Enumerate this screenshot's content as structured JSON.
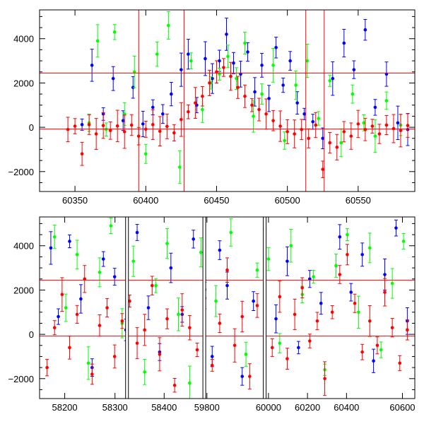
{
  "chart_data": [
    {
      "type": "scatter",
      "title": "",
      "xlabel": "",
      "ylabel": "",
      "xlim": [
        60325,
        60590
      ],
      "ylim": [
        -2900,
        5300
      ],
      "x_ticks": [
        60350,
        60400,
        60450,
        60500,
        60550
      ],
      "y_ticks": [
        -2000,
        0,
        2000,
        4000
      ],
      "error_bars": true,
      "reference_lines": {
        "horizontal": [
          2450,
          -80
        ],
        "vertical": [
          60395,
          60427,
          60513,
          60526
        ]
      },
      "series": [
        {
          "color": "#0000ff",
          "marker": "circle",
          "x": [
            60355,
            60362,
            60370,
            60377,
            60384,
            60391,
            60398,
            60405,
            60412,
            60418,
            60425,
            60430,
            60436,
            60442,
            60447,
            60452,
            60457,
            60462,
            60467,
            60472,
            60477,
            60482,
            60487,
            60492,
            60497,
            60502,
            60507,
            60512,
            60518,
            60525,
            60532,
            60540,
            60547,
            60555,
            60562,
            60570,
            60578,
            60585
          ],
          "y": [
            120,
            2800,
            600,
            2200,
            300,
            1800,
            150,
            900,
            600,
            1500,
            2600,
            3300,
            1000,
            3100,
            2200,
            3000,
            4200,
            2900,
            2400,
            3400,
            1600,
            2800,
            1300,
            3600,
            1900,
            3000,
            1100,
            600,
            250,
            -500,
            2200,
            3800,
            2600,
            4400,
            900,
            2400,
            200,
            -100
          ]
        },
        {
          "color": "#00ff00",
          "marker": "circle",
          "x": [
            60360,
            60366,
            60372,
            60378,
            60385,
            60392,
            60400,
            60408,
            60416,
            60424,
            60432,
            60440,
            60446,
            60452,
            60458,
            60464,
            60470,
            60476,
            60482,
            60490,
            60498,
            60506,
            60514,
            60522,
            60530,
            60538,
            60546,
            60554,
            60562,
            60570,
            60580
          ],
          "y": [
            200,
            3900,
            -100,
            4300,
            600,
            2500,
            -1200,
            3300,
            4600,
            -1800,
            3000,
            800,
            2000,
            2400,
            3200,
            2200,
            3800,
            500,
            1500,
            2800,
            -600,
            1900,
            3000,
            400,
            2100,
            -700,
            1500,
            200,
            -400,
            1200,
            100
          ]
        },
        {
          "color": "#ff0000",
          "marker": "circle",
          "x": [
            60345,
            60350,
            60355,
            60360,
            60365,
            60370,
            60375,
            60380,
            60385,
            60390,
            60395,
            60400,
            60405,
            60410,
            60415,
            60420,
            60425,
            60430,
            60435,
            60440,
            60445,
            60450,
            60455,
            60460,
            60465,
            60470,
            60475,
            60480,
            60485,
            60490,
            60495,
            60500,
            60505,
            60510,
            60515,
            60520,
            60525,
            60530,
            60535,
            60540,
            60545,
            60550,
            60555,
            60560,
            60565,
            60570,
            60575,
            60580,
            60585
          ],
          "y": [
            -100,
            50,
            -1200,
            120,
            -300,
            80,
            -150,
            60,
            -200,
            100,
            -400,
            -90,
            120,
            -180,
            40,
            -250,
            350,
            700,
            1100,
            1400,
            2000,
            2500,
            2700,
            2300,
            1800,
            1400,
            1000,
            800,
            600,
            300,
            50,
            -200,
            -300,
            -100,
            -500,
            100,
            -1900,
            -700,
            -900,
            -200,
            -400,
            150,
            -100,
            50,
            -300,
            100,
            -60,
            -150,
            80
          ]
        }
      ]
    },
    {
      "type": "scatter",
      "title": "",
      "xlabel": "",
      "ylabel": "",
      "xlim": [
        0,
        100
      ],
      "ylim": [
        -2900,
        5300
      ],
      "x_ticks": [
        {
          "label": "58200",
          "x": 6.7
        },
        {
          "label": "58300",
          "x": 20.1
        },
        {
          "label": "58400",
          "x": 33.2
        },
        {
          "label": "59800",
          "x": 44.6
        },
        {
          "label": "60000",
          "x": 61.0
        },
        {
          "label": "60200",
          "x": 71.4
        },
        {
          "label": "60400",
          "x": 81.8
        },
        {
          "label": "60600",
          "x": 96.7
        }
      ],
      "y_ticks": [
        -2000,
        0,
        2000,
        4000
      ],
      "error_bars": true,
      "panel_breaks": [
        23.3,
        43.9,
        60.0
      ],
      "reference_lines": {
        "horizontal": [
          2450,
          -80
        ],
        "vertical": []
      },
      "series": [
        {
          "color": "#0000ff",
          "marker": "circle",
          "x": [
            3,
            5,
            8,
            11,
            14,
            17,
            20,
            23,
            26,
            29,
            32,
            35,
            38,
            41,
            44,
            46,
            48,
            50,
            54,
            57,
            60,
            63,
            66,
            69,
            72,
            75,
            80,
            83,
            86,
            89,
            92,
            95,
            98
          ],
          "y": [
            3900,
            800,
            4200,
            1600,
            -1500,
            3400,
            2600,
            200,
            4600,
            1200,
            -800,
            3000,
            900,
            4300,
            2000,
            -1000,
            3800,
            2200,
            -1900,
            1500,
            4100,
            700,
            3300,
            -600,
            2500,
            1400,
            4400,
            1900,
            3600,
            -1200,
            2700,
            4800,
            600
          ]
        },
        {
          "color": "#00ff00",
          "marker": "circle",
          "x": [
            4,
            7,
            10,
            13,
            16,
            19,
            22,
            25,
            28,
            31,
            34,
            37,
            40,
            43,
            47,
            51,
            55,
            58,
            61,
            64,
            67,
            70,
            73,
            76,
            79,
            82,
            85,
            88,
            91,
            94,
            97
          ],
          "y": [
            4400,
            1200,
            3600,
            -1300,
            2800,
            4900,
            500,
            3300,
            -1700,
            2200,
            4100,
            900,
            -2200,
            3700,
            1500,
            4600,
            -900,
            2900,
            3400,
            -400,
            4000,
            1800,
            2600,
            -1600,
            3100,
            4500,
            1000,
            3900,
            -700,
            2300,
            4200
          ]
        },
        {
          "color": "#ff0000",
          "marker": "circle",
          "x": [
            2,
            4,
            6,
            8,
            10,
            12,
            14,
            16,
            18,
            20,
            22,
            24,
            26,
            28,
            30,
            32,
            34,
            36,
            38,
            40,
            42,
            44,
            46,
            48,
            50,
            52,
            54,
            56,
            58,
            60,
            62,
            64,
            66,
            68,
            70,
            72,
            74,
            76,
            78,
            80,
            82,
            84,
            86,
            88,
            90,
            92,
            94,
            96,
            98
          ],
          "y": [
            -1500,
            300,
            1800,
            -600,
            900,
            2500,
            -1800,
            400,
            1200,
            -1000,
            600,
            1500,
            -400,
            200,
            2200,
            -900,
            700,
            -2300,
            1100,
            300,
            -700,
            1600,
            -1400,
            500,
            2900,
            -500,
            800,
            -1900,
            1300,
            400,
            -600,
            1700,
            -1100,
            900,
            2100,
            -300,
            600,
            -2000,
            1000,
            2700,
            3600,
            1400,
            -800,
            600,
            -500,
            1900,
            300,
            -1300,
            200
          ]
        }
      ]
    }
  ]
}
